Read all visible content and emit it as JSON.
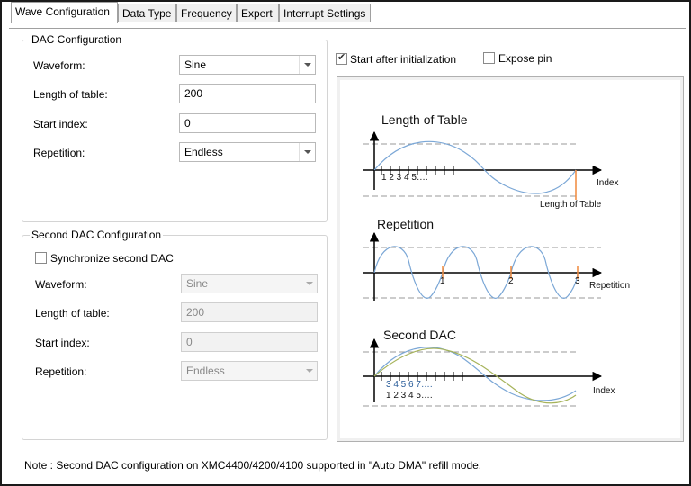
{
  "tabs": [
    {
      "label": "Wave Configuration",
      "active": true
    },
    {
      "label": "Data Type",
      "active": false
    },
    {
      "label": "Frequency",
      "active": false
    },
    {
      "label": "Expert",
      "active": false
    },
    {
      "label": "Interrupt Settings",
      "active": false
    }
  ],
  "dac": {
    "title": "DAC Configuration",
    "waveform_label": "Waveform:",
    "waveform_value": "Sine",
    "length_label": "Length of table:",
    "length_value": "200",
    "start_label": "Start index:",
    "start_value": "0",
    "repetition_label": "Repetition:",
    "repetition_value": "Endless"
  },
  "second_dac": {
    "title": "Second DAC Configuration",
    "sync_label": "Synchronize second DAC",
    "sync_checked": false,
    "waveform_label": "Waveform:",
    "waveform_value": "Sine",
    "length_label": "Length of table:",
    "length_value": "200",
    "start_label": "Start index:",
    "start_value": "0",
    "repetition_label": "Repetition:",
    "repetition_value": "Endless"
  },
  "options": {
    "start_after_init_label": "Start after initialization",
    "start_after_init_checked": true,
    "expose_pin_label": "Expose pin",
    "expose_pin_checked": false
  },
  "diagram": {
    "length_title": "Length of Table",
    "length_ticks": "1 2 3 4 5….",
    "length_axis": "Index",
    "length_marker": "Length of Table",
    "repetition_title": "Repetition",
    "rep_1": "1",
    "rep_2": "2",
    "rep_3": "3",
    "repetition_axis": "Repetition",
    "second_title": "Second DAC",
    "second_ticks_top": "3  4  5  6  7….",
    "second_ticks_bottom": "1  2  3  4  5….",
    "second_axis": "Index"
  },
  "note": "Note : Second DAC configuration on XMC4400/4200/4100 supported in \"Auto DMA\" refill mode.",
  "colors": {
    "sine_blue": "#7ba7d6",
    "sine_olive": "#a6b35a",
    "marker_orange": "#f0883a",
    "dash_gray": "#999999"
  }
}
